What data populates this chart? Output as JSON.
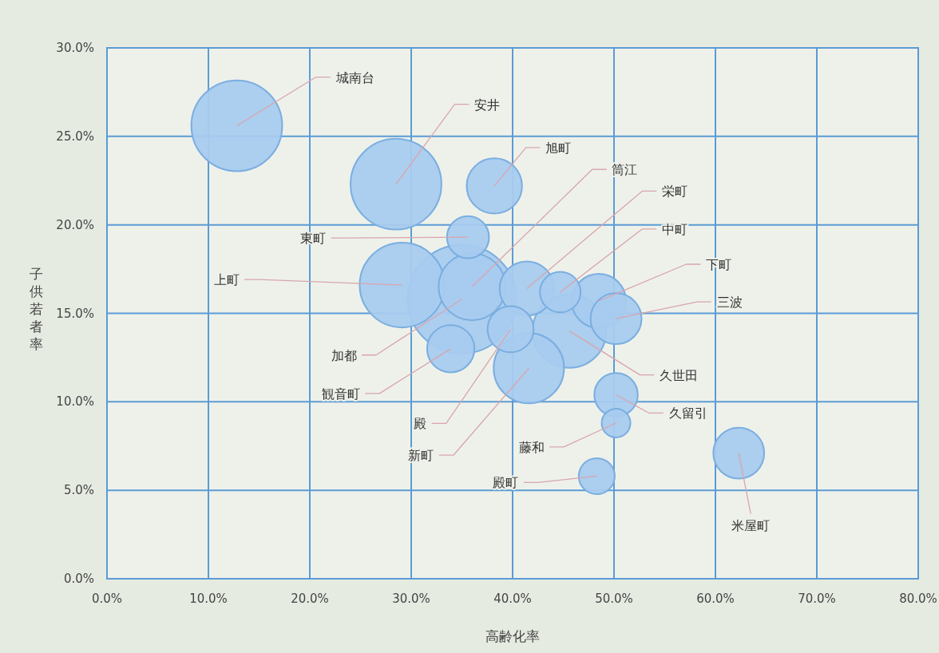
{
  "chart_data": {
    "type": "bubble",
    "xlabel": "高齢化率",
    "ylabel": "子供若者率",
    "xlim": [
      0,
      80
    ],
    "ylim": [
      0,
      30
    ],
    "grid": true,
    "xticks": [
      {
        "value": 0,
        "label": "0.0%"
      },
      {
        "value": 10,
        "label": "10.0%"
      },
      {
        "value": 20,
        "label": "20.0%"
      },
      {
        "value": 30,
        "label": "30.0%"
      },
      {
        "value": 40,
        "label": "40.0%"
      },
      {
        "value": 50,
        "label": "50.0%"
      },
      {
        "value": 60,
        "label": "60.0%"
      },
      {
        "value": 70,
        "label": "70.0%"
      },
      {
        "value": 80,
        "label": "80.0%"
      }
    ],
    "yticks": [
      {
        "value": 0,
        "label": "0.0%"
      },
      {
        "value": 5,
        "label": "5.0%"
      },
      {
        "value": 10,
        "label": "10.0%"
      },
      {
        "value": 15,
        "label": "15.0%"
      },
      {
        "value": 20,
        "label": "20.0%"
      },
      {
        "value": 25,
        "label": "25.0%"
      },
      {
        "value": 30,
        "label": "30.0%"
      }
    ],
    "series": [
      {
        "name": "城南台",
        "color": "#a8cbef",
        "x": [
          12.8
        ],
        "values": [
          25.6
        ],
        "sizes": [
          0.7
        ]
      },
      {
        "name": "安井",
        "color": "#a8cbef",
        "x": [
          28.5
        ],
        "values": [
          22.3
        ],
        "sizes": [
          0.7
        ]
      },
      {
        "name": "旭町",
        "color": "#a8cbef",
        "x": [
          38.2
        ],
        "values": [
          22.2
        ],
        "sizes": [
          0.26
        ]
      },
      {
        "name": "加都",
        "color": "#a8cbef",
        "x": [
          35.0
        ],
        "values": [
          15.8
        ],
        "sizes": [
          1
        ]
      },
      {
        "name": "久世田",
        "color": "#a8cbef",
        "x": [
          45.6
        ],
        "values": [
          14.0
        ],
        "sizes": [
          0.46
        ]
      },
      {
        "name": "上町",
        "color": "#a8cbef",
        "x": [
          29.1
        ],
        "values": [
          16.6
        ],
        "sizes": [
          0.61
        ]
      },
      {
        "name": "筒江",
        "color": "#a8cbef",
        "x": [
          36.0
        ],
        "values": [
          16.5
        ],
        "sizes": [
          0.38
        ]
      },
      {
        "name": "東町",
        "color": "#a8cbef",
        "x": [
          35.6
        ],
        "values": [
          19.3
        ],
        "sizes": [
          0.15
        ]
      },
      {
        "name": "下町",
        "color": "#a8cbef",
        "x": [
          48.5
        ],
        "values": [
          15.7
        ],
        "sizes": [
          0.25
        ]
      },
      {
        "name": "栄町",
        "color": "#a8cbef",
        "x": [
          41.4
        ],
        "values": [
          16.4
        ],
        "sizes": [
          0.25
        ]
      },
      {
        "name": "中町",
        "color": "#a8cbef",
        "x": [
          44.7
        ],
        "values": [
          16.2
        ],
        "sizes": [
          0.14
        ]
      },
      {
        "name": "三波",
        "color": "#a8cbef",
        "x": [
          50.2
        ],
        "values": [
          14.7
        ],
        "sizes": [
          0.22
        ]
      },
      {
        "name": "新町",
        "color": "#a8cbef",
        "x": [
          41.6
        ],
        "values": [
          11.9
        ],
        "sizes": [
          0.42
        ]
      },
      {
        "name": "殿",
        "color": "#a8cbef",
        "x": [
          39.8
        ],
        "values": [
          14.1
        ],
        "sizes": [
          0.18
        ]
      },
      {
        "name": "観音町",
        "color": "#a8cbef",
        "x": [
          33.9
        ],
        "values": [
          13.0
        ],
        "sizes": [
          0.19
        ]
      },
      {
        "name": "久留引",
        "color": "#a8cbef",
        "x": [
          50.2
        ],
        "values": [
          10.4
        ],
        "sizes": [
          0.16
        ]
      },
      {
        "name": "藤和",
        "color": "#a8cbef",
        "x": [
          50.2
        ],
        "values": [
          8.8
        ],
        "sizes": [
          0.07
        ]
      },
      {
        "name": "殿町",
        "color": "#a8cbef",
        "x": [
          48.3
        ],
        "values": [
          5.8
        ],
        "sizes": [
          0.11
        ]
      },
      {
        "name": "米屋町",
        "color": "#a8cbef",
        "x": [
          62.3
        ],
        "values": [
          7.1
        ],
        "sizes": [
          0.22
        ]
      }
    ]
  }
}
